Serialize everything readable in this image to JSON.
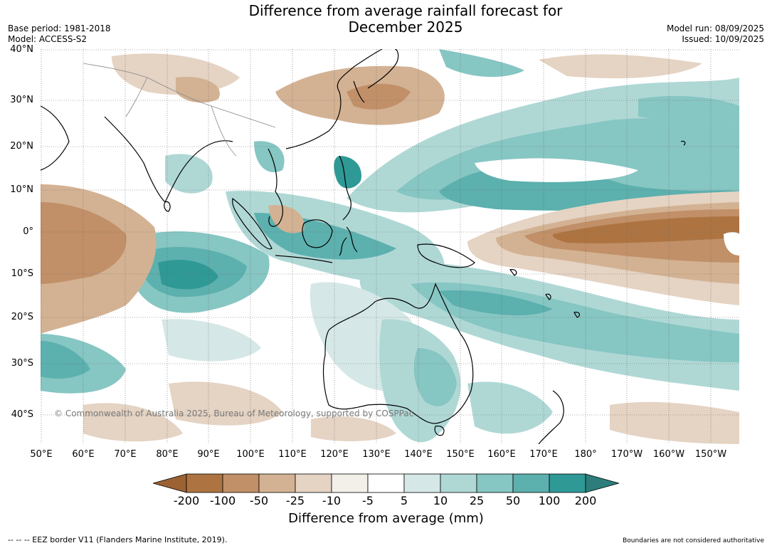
{
  "title_line1": "Difference from average rainfall forecast for",
  "title_line2": "December 2025",
  "base_period": "Base period: 1981-2018",
  "model": "Model: ACCESS-S2",
  "model_run": "Model run: 08/09/2025",
  "issued": "Issued: 10/09/2025",
  "copyright": "© Commonwealth of Australia 2025, Bureau of Meteorology, supported by COSPPac",
  "lat_labels": [
    "40°N",
    "30°N",
    "20°N",
    "10°N",
    "0°",
    "10°S",
    "20°S",
    "30°S",
    "40°S"
  ],
  "lon_labels": [
    "50°E",
    "60°E",
    "70°E",
    "80°E",
    "90°E",
    "100°E",
    "110°E",
    "120°E",
    "130°E",
    "140°E",
    "150°E",
    "160°E",
    "170°E",
    "180°",
    "170°W",
    "160°W",
    "150°W"
  ],
  "colorbar": {
    "labels": [
      "-200",
      "-100",
      "-50",
      "-25",
      "-10",
      "-5",
      "5",
      "10",
      "25",
      "50",
      "100",
      "200"
    ],
    "colors": [
      "#9c6233",
      "#ad7442",
      "#c19068",
      "#d3b293",
      "#e5d3c3",
      "#f3efe9",
      "#ffffff",
      "#d5e8e7",
      "#afd8d5",
      "#86c6c3",
      "#5cb0ae",
      "#2f9996",
      "#2c7d7b"
    ],
    "title": "Difference from average (mm)"
  },
  "eez_legend": "--  --  -- EEZ border V11 (Flanders Marine Institute, 2019).",
  "disclaimer": "Boundaries are not considered authoritative"
}
